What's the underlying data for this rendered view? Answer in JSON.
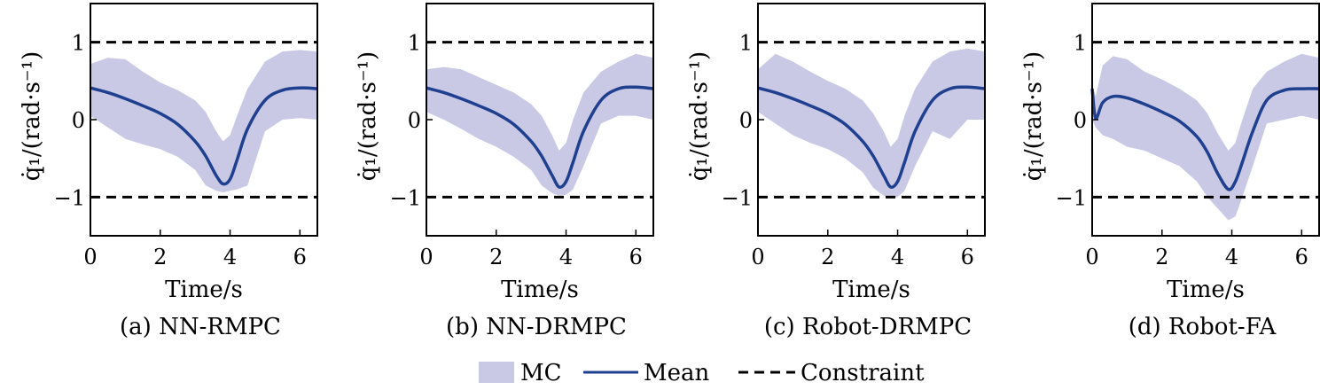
{
  "colors": {
    "band": "#c9c9e6",
    "mean": "#1f3f8f",
    "constraint": "#000000"
  },
  "legend": {
    "mc_label": "MC",
    "mean_label": "Mean",
    "constraint_label": "Constraint"
  },
  "chart_data": [
    {
      "type": "line",
      "caption": "(a) NN-RMPC",
      "xlabel": "Time/s",
      "ylabel": "q̇₁/(rad·s⁻¹)",
      "xlim": [
        0,
        6.5
      ],
      "ylim": [
        -1.5,
        1.5
      ],
      "xticks": [
        0,
        2,
        4,
        6
      ],
      "yticks": [
        -1,
        0,
        1
      ],
      "constraints": [
        1,
        -1
      ],
      "x": [
        0,
        0.5,
        1,
        1.5,
        2,
        2.5,
        3,
        3.3,
        3.6,
        3.8,
        4.0,
        4.2,
        4.5,
        5.0,
        5.5,
        6.0,
        6.5
      ],
      "mean": [
        0.41,
        0.35,
        0.27,
        0.18,
        0.08,
        -0.06,
        -0.28,
        -0.47,
        -0.72,
        -0.83,
        -0.77,
        -0.52,
        -0.12,
        0.25,
        0.38,
        0.41,
        0.4
      ],
      "upper": [
        0.72,
        0.8,
        0.78,
        0.62,
        0.48,
        0.38,
        0.25,
        0.1,
        -0.15,
        -0.28,
        -0.2,
        0.05,
        0.4,
        0.75,
        0.88,
        0.9,
        0.88
      ],
      "lower": [
        0.05,
        -0.1,
        -0.25,
        -0.32,
        -0.38,
        -0.48,
        -0.65,
        -0.85,
        -0.92,
        -0.94,
        -0.92,
        -0.9,
        -0.85,
        -0.15,
        0.0,
        0.02,
        0.0
      ]
    },
    {
      "type": "line",
      "caption": "(b) NN-DRMPC",
      "xlabel": "Time/s",
      "ylabel": "q̇₁/(rad·s⁻¹)",
      "xlim": [
        0,
        6.5
      ],
      "ylim": [
        -1.5,
        1.5
      ],
      "xticks": [
        0,
        2,
        4,
        6
      ],
      "yticks": [
        -1,
        0,
        1
      ],
      "constraints": [
        1,
        -1
      ],
      "x": [
        0,
        0.5,
        1,
        1.5,
        2,
        2.5,
        3,
        3.3,
        3.6,
        3.8,
        4.0,
        4.2,
        4.5,
        5.0,
        5.5,
        6.0,
        6.5
      ],
      "mean": [
        0.41,
        0.35,
        0.27,
        0.18,
        0.08,
        -0.06,
        -0.28,
        -0.47,
        -0.72,
        -0.87,
        -0.8,
        -0.55,
        -0.15,
        0.25,
        0.4,
        0.42,
        0.4
      ],
      "upper": [
        0.65,
        0.68,
        0.65,
        0.55,
        0.45,
        0.35,
        0.2,
        0.05,
        -0.2,
        -0.4,
        -0.3,
        0.0,
        0.35,
        0.62,
        0.75,
        0.85,
        0.8
      ],
      "lower": [
        0.1,
        0.0,
        -0.12,
        -0.25,
        -0.35,
        -0.48,
        -0.65,
        -0.85,
        -0.95,
        -0.98,
        -0.97,
        -0.9,
        -0.6,
        -0.05,
        0.05,
        0.05,
        0.0
      ]
    },
    {
      "type": "line",
      "caption": "(c) Robot-DRMPC",
      "xlabel": "Time/s",
      "ylabel": "q̇₁/(rad·s⁻¹)",
      "xlim": [
        0,
        6.5
      ],
      "ylim": [
        -1.5,
        1.5
      ],
      "xticks": [
        0,
        2,
        4,
        6
      ],
      "yticks": [
        -1,
        0,
        1
      ],
      "constraints": [
        1,
        -1
      ],
      "x": [
        0,
        0.5,
        1,
        1.5,
        2,
        2.5,
        3,
        3.3,
        3.6,
        3.8,
        4.0,
        4.2,
        4.5,
        5.0,
        5.5,
        6.0,
        6.5
      ],
      "mean": [
        0.41,
        0.35,
        0.27,
        0.18,
        0.08,
        -0.06,
        -0.28,
        -0.47,
        -0.72,
        -0.87,
        -0.8,
        -0.55,
        -0.15,
        0.25,
        0.4,
        0.42,
        0.4
      ],
      "upper": [
        0.65,
        0.85,
        0.75,
        0.62,
        0.5,
        0.4,
        0.25,
        0.08,
        -0.15,
        -0.35,
        -0.25,
        0.05,
        0.4,
        0.75,
        0.88,
        0.92,
        0.88
      ],
      "lower": [
        0.1,
        -0.05,
        -0.2,
        -0.3,
        -0.38,
        -0.5,
        -0.68,
        -0.88,
        -0.98,
        -1.02,
        -1.0,
        -0.92,
        -0.6,
        -0.15,
        -0.25,
        0.0,
        0.0
      ]
    },
    {
      "type": "line",
      "caption": "(d) Robot-FA",
      "xlabel": "Time/s",
      "ylabel": "q̇₁/(rad·s⁻¹)",
      "xlim": [
        0,
        6.5
      ],
      "ylim": [
        -1.5,
        1.5
      ],
      "xticks": [
        0,
        2,
        4,
        6
      ],
      "yticks": [
        -1,
        0,
        1
      ],
      "constraints": [
        1,
        -1
      ],
      "x": [
        0,
        0.1,
        0.3,
        0.6,
        1.0,
        1.5,
        2,
        2.5,
        3,
        3.3,
        3.6,
        3.9,
        4.1,
        4.3,
        4.6,
        5.0,
        5.5,
        6.0,
        6.5
      ],
      "mean": [
        0.4,
        0.02,
        0.22,
        0.3,
        0.28,
        0.2,
        0.1,
        -0.02,
        -0.22,
        -0.42,
        -0.7,
        -0.9,
        -0.8,
        -0.55,
        -0.15,
        0.25,
        0.38,
        0.4,
        0.4
      ],
      "upper": [
        0.45,
        0.3,
        0.7,
        0.82,
        0.78,
        0.62,
        0.52,
        0.4,
        0.25,
        0.08,
        -0.18,
        -0.4,
        -0.3,
        0.0,
        0.4,
        0.62,
        0.75,
        0.85,
        0.8
      ],
      "lower": [
        0.0,
        -0.1,
        -0.2,
        -0.25,
        -0.35,
        -0.4,
        -0.5,
        -0.6,
        -0.8,
        -1.0,
        -1.15,
        -1.3,
        -1.25,
        -1.0,
        -0.6,
        -0.05,
        0.0,
        0.05,
        0.0
      ]
    }
  ]
}
